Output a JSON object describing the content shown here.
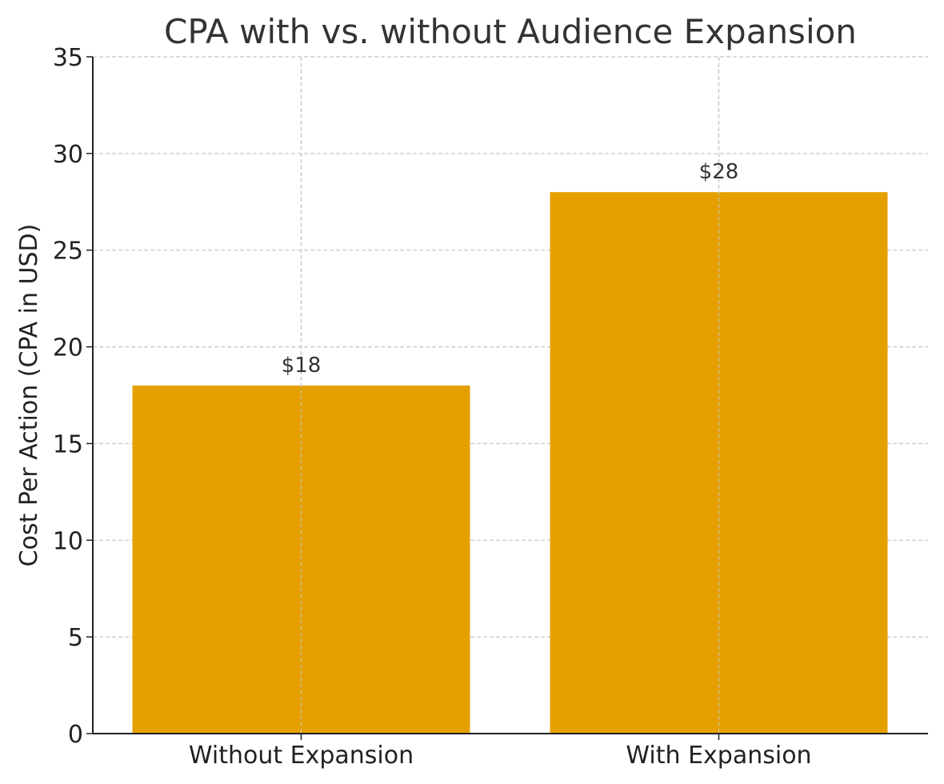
{
  "chart_data": {
    "type": "bar",
    "title": "CPA with vs. without Audience Expansion",
    "xlabel": "",
    "ylabel": "Cost Per Action (CPA in USD)",
    "categories": [
      "Without Expansion",
      "With Expansion"
    ],
    "values": [
      18,
      28
    ],
    "data_labels": [
      "$18",
      "$28"
    ],
    "ylim": [
      0,
      35
    ],
    "yticks": [
      0,
      5,
      10,
      15,
      20,
      25,
      30,
      35
    ],
    "grid": true,
    "bar_color": "#E5A000"
  }
}
